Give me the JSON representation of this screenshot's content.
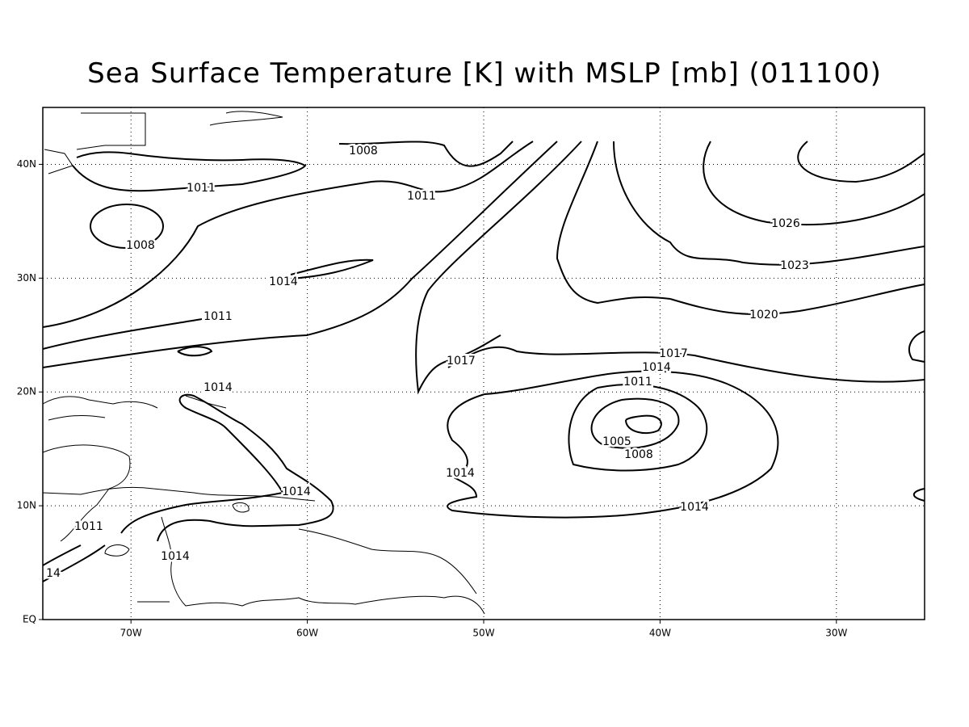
{
  "title": "Sea Surface Temperature [K] with MSLP [mb] (011100)",
  "map": {
    "lon_range": [
      -75,
      -25
    ],
    "lat_range": [
      0,
      45
    ],
    "lon_ticks": [
      {
        "value": -70,
        "label": "70W"
      },
      {
        "value": -60,
        "label": "60W"
      },
      {
        "value": -50,
        "label": "50W"
      },
      {
        "value": -40,
        "label": "40W"
      },
      {
        "value": -30,
        "label": "30W"
      }
    ],
    "lat_ticks": [
      {
        "value": 0,
        "label": "EQ"
      },
      {
        "value": 10,
        "label": "10N"
      },
      {
        "value": 20,
        "label": "20N"
      },
      {
        "value": 30,
        "label": "30N"
      },
      {
        "value": 40,
        "label": "40N"
      }
    ],
    "contour_labels": [
      1008,
      1011,
      1008,
      1011,
      1014,
      1011,
      1026,
      1023,
      1020,
      1017,
      1014,
      1011,
      1017,
      1014,
      1005,
      1008,
      1014,
      1014,
      1014,
      1011,
      1014,
      14
    ]
  }
}
